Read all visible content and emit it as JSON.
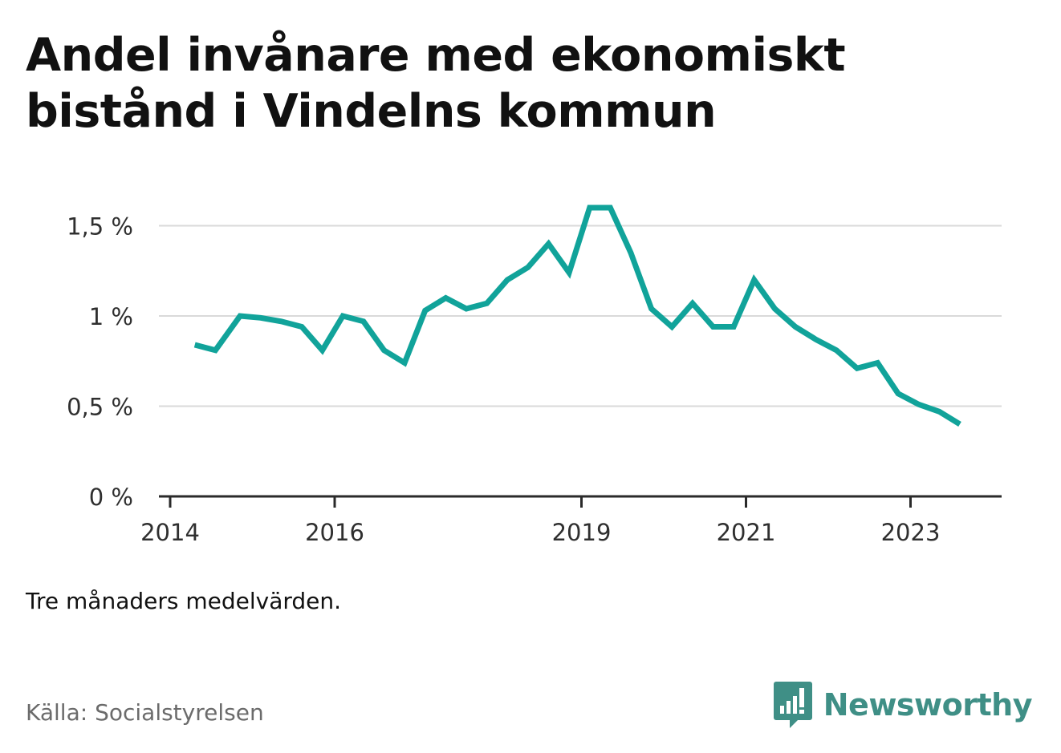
{
  "title": "Andel invånare med ekonomiskt bistånd i Vindelns kommun",
  "note": "Tre månaders medelvärden.",
  "source": "Källa: Socialstyrelsen",
  "brand": {
    "name": "Newsworthy",
    "logo_icon": "bar-chart-speech-bubble-icon",
    "color": "#3f8f86"
  },
  "chart_data": {
    "type": "line",
    "title": "Andel invånare med ekonomiskt bistånd i Vindelns kommun",
    "xlabel": "",
    "ylabel": "",
    "x_range": [
      2014,
      2024.05
    ],
    "ylim": [
      0,
      1.6
    ],
    "grid": true,
    "legend": "none",
    "color": "#11a39a",
    "x_ticks": [
      {
        "value": 2014,
        "label": "2014"
      },
      {
        "value": 2016,
        "label": "2016"
      },
      {
        "value": 2019,
        "label": "2019"
      },
      {
        "value": 2021,
        "label": "2021"
      },
      {
        "value": 2023,
        "label": "2023"
      }
    ],
    "y_ticks": [
      {
        "value": 0,
        "label": "0 %"
      },
      {
        "value": 0.5,
        "label": "0,5 %"
      },
      {
        "value": 1,
        "label": "1 %"
      },
      {
        "value": 1.5,
        "label": "1,5 %"
      }
    ],
    "series": [
      {
        "x": [
          2014.3,
          2014.55,
          2014.85,
          2015.1,
          2015.35,
          2015.6,
          2015.85,
          2016.1,
          2016.35,
          2016.6,
          2016.85,
          2017.1,
          2017.35,
          2017.6,
          2017.85,
          2018.1,
          2018.35,
          2018.6,
          2018.85,
          2019.1,
          2019.35,
          2019.6,
          2019.85,
          2020.1,
          2020.35,
          2020.6,
          2020.85,
          2021.1,
          2021.35,
          2021.6,
          2021.85,
          2022.1,
          2022.35,
          2022.6,
          2022.85,
          2023.1,
          2023.35,
          2023.6
        ],
        "values": [
          0.84,
          0.81,
          1.0,
          0.99,
          0.97,
          0.94,
          0.81,
          1.0,
          0.97,
          0.81,
          0.74,
          1.03,
          1.1,
          1.04,
          1.07,
          1.2,
          1.27,
          1.4,
          1.24,
          1.6,
          1.6,
          1.35,
          1.04,
          0.94,
          1.07,
          0.94,
          0.94,
          1.2,
          1.04,
          0.94,
          0.87,
          0.81,
          0.71,
          0.74,
          0.57,
          0.51,
          0.47,
          0.4
        ]
      }
    ]
  }
}
